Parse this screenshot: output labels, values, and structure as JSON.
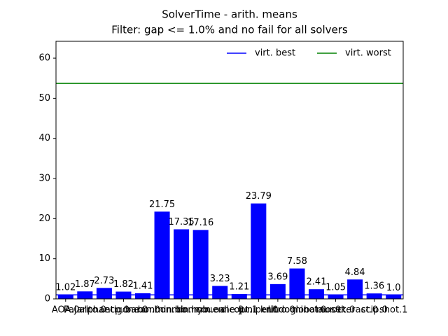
{
  "chart_data": {
    "type": "bar",
    "title": "SolverTime - arith. means",
    "subtitle": "Filter: gap <= 1.0% and no fail for all solvers",
    "categories": [
      "AOA.0",
      "Pajarito.0",
      "alphaecp.0",
      "antigone.0",
      "baron.0",
      "bonmin.bb",
      "bonmin.hyb",
      "bonmin.oa",
      "couenne.0",
      "dicopt.1",
      "juniper.0",
      "knitro.0",
      "lindoglobal.0",
      "minotaur.0",
      "mosek.0",
      "octeract.0",
      "scip.0",
      "shot.1"
    ],
    "values": [
      1.02,
      1.87,
      2.73,
      1.82,
      1.41,
      21.75,
      17.35,
      17.16,
      3.23,
      1.21,
      23.79,
      3.69,
      7.58,
      2.41,
      1.05,
      4.84,
      1.36,
      1.0
    ],
    "value_labels": [
      "1.02",
      "1.87",
      "2.73",
      "1.82",
      "1.41",
      "21.75",
      "17.35",
      "17.16",
      "3.23",
      "1.21",
      "23.79",
      "3.69",
      "7.58",
      "2.41",
      "1.05",
      "4.84",
      "1.36",
      "1.0"
    ],
    "color": "#0000ff",
    "lines": [
      {
        "name": "virt. best",
        "color": "#0000ff",
        "value": 1.0
      },
      {
        "name": "virt. worst",
        "color": "#008000",
        "value": 53.7
      }
    ],
    "legend": "upper right",
    "ylim": [
      0,
      64.2
    ],
    "yticks": [
      0,
      10,
      20,
      30,
      40,
      50,
      60
    ]
  }
}
